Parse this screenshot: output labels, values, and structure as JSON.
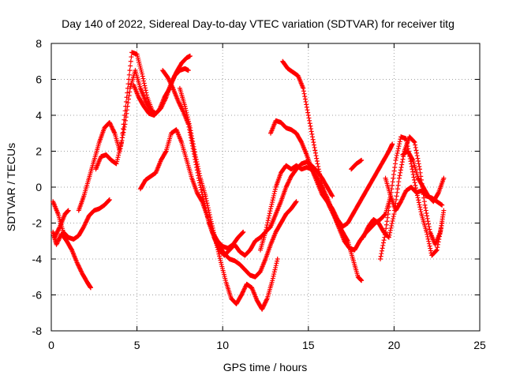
{
  "chart_data": {
    "type": "scatter",
    "title": "Day 140 of 2022, Sidereal Day-to-day VTEC variation (SDTVAR) for receiver titg",
    "xlabel": "GPS time / hours",
    "ylabel": "SDTVAR / TECUs",
    "xlim": [
      0,
      25
    ],
    "ylim": [
      -8,
      8
    ],
    "xticks": [
      "0",
      "5",
      "10",
      "15",
      "20",
      "25"
    ],
    "yticks": [
      "-8",
      "-6",
      "-4",
      "-2",
      "0",
      "2",
      "4",
      "6",
      "8"
    ],
    "grid": true,
    "marker": "+",
    "color": "#ff0000",
    "series": [
      {
        "name": "s1",
        "x": [
          0.1,
          0.3,
          0.6,
          0.9,
          1.2,
          1.5,
          1.8,
          2.1,
          2.3
        ],
        "y": [
          -2.5,
          -3.2,
          -2.6,
          -3.0,
          -3.5,
          -4.2,
          -4.8,
          -5.3,
          -5.6
        ]
      },
      {
        "name": "s2",
        "x": [
          0.1,
          0.4,
          0.7,
          1.0,
          1.3,
          1.6,
          1.9,
          2.2,
          2.5,
          2.8,
          3.1,
          3.4
        ],
        "y": [
          -0.8,
          -1.5,
          -2.5,
          -2.8,
          -2.9,
          -2.7,
          -2.2,
          -1.6,
          -1.3,
          -1.2,
          -1.0,
          -0.7
        ]
      },
      {
        "name": "s3",
        "x": [
          0.2,
          0.5,
          0.8,
          1.0
        ],
        "y": [
          -2.8,
          -2.2,
          -1.5,
          -1.3
        ]
      },
      {
        "name": "s4",
        "x": [
          1.6,
          1.9,
          2.2,
          2.5,
          2.8,
          3.1,
          3.4,
          3.7,
          4.0,
          4.3,
          4.6,
          4.9,
          5.2,
          5.5,
          5.8,
          6.1,
          6.4,
          6.7,
          7.0,
          7.3,
          7.6,
          7.9,
          8.1
        ],
        "y": [
          -1.3,
          -0.5,
          0.5,
          1.5,
          2.5,
          3.3,
          3.6,
          3.0,
          2.0,
          3.5,
          5.5,
          6.5,
          5.5,
          4.8,
          4.3,
          4.1,
          4.4,
          5.0,
          5.8,
          6.4,
          6.9,
          7.2,
          7.3
        ]
      },
      {
        "name": "s5",
        "x": [
          2.6,
          2.9,
          3.2,
          3.5,
          3.8,
          4.1,
          4.4,
          4.7,
          5.0,
          5.3,
          5.6,
          6.0
        ],
        "y": [
          1.0,
          1.7,
          1.8,
          1.5,
          1.3,
          2.5,
          5.0,
          7.5,
          7.4,
          6.3,
          5.0,
          4.0
        ]
      },
      {
        "name": "s6",
        "x": [
          4.8,
          5.1,
          5.4,
          5.7,
          6.0,
          6.3,
          6.6,
          6.9,
          7.2,
          7.5,
          7.8,
          8.0
        ],
        "y": [
          5.7,
          5.0,
          4.5,
          4.1,
          4.0,
          4.3,
          5.0,
          5.5,
          6.2,
          6.5,
          6.6,
          6.5
        ]
      },
      {
        "name": "s7",
        "x": [
          5.2,
          5.5,
          5.8,
          6.1,
          6.4,
          6.7,
          7.0,
          7.3,
          7.6,
          7.9,
          8.2,
          8.5,
          8.8,
          9.1,
          9.4,
          9.7,
          10.0,
          10.3,
          10.6,
          10.9,
          11.2
        ],
        "y": [
          -0.1,
          0.4,
          0.6,
          0.8,
          1.5,
          2.0,
          3.0,
          3.2,
          2.5,
          1.5,
          0.5,
          -0.3,
          -0.8,
          -1.6,
          -2.5,
          -3.0,
          -3.3,
          -3.4,
          -3.2,
          -2.8,
          -2.5
        ]
      },
      {
        "name": "s8",
        "x": [
          6.5,
          6.8,
          7.1,
          7.4,
          7.7,
          8.0,
          8.3,
          8.6,
          8.9,
          9.2,
          9.5,
          9.8,
          10.1,
          10.4,
          10.7,
          11.0,
          11.3,
          11.6,
          11.9,
          12.2,
          12.5,
          12.8,
          13.1,
          13.4,
          13.7,
          14.0,
          14.3
        ],
        "y": [
          6.5,
          6.1,
          5.5,
          4.8,
          4.2,
          3.5,
          2.0,
          0.5,
          -0.8,
          -2.0,
          -2.8,
          -3.3,
          -3.7,
          -4.0,
          -4.1,
          -4.3,
          -4.6,
          -4.9,
          -5.0,
          -4.7,
          -4.0,
          -3.2,
          -2.5,
          -2.0,
          -1.5,
          -1.2,
          -0.8
        ]
      },
      {
        "name": "s9",
        "x": [
          7.5,
          7.8,
          8.1,
          8.4,
          8.7,
          9.0,
          9.3,
          9.6,
          9.9,
          10.2,
          10.5,
          10.8,
          11.1,
          11.4,
          11.7,
          12.0,
          12.3,
          12.6,
          12.9,
          13.2
        ],
        "y": [
          5.5,
          4.5,
          3.3,
          1.8,
          0.5,
          -0.5,
          -1.8,
          -3.0,
          -4.2,
          -5.3,
          -6.2,
          -6.5,
          -6.0,
          -5.4,
          -5.6,
          -6.3,
          -6.8,
          -6.2,
          -5.2,
          -4.0
        ]
      },
      {
        "name": "s10",
        "x": [
          9.5,
          9.8,
          10.1,
          10.4,
          10.7,
          11.0,
          11.3,
          11.6,
          11.9,
          12.2,
          12.5,
          12.8,
          13.1,
          13.4,
          13.7,
          14.0,
          14.3,
          14.6,
          14.9,
          15.2,
          15.5,
          15.8,
          16.1,
          16.4
        ],
        "y": [
          -2.8,
          -3.5,
          -3.8,
          -3.5,
          -3.2,
          -3.6,
          -3.8,
          -3.5,
          -3.0,
          -2.8,
          -2.5,
          -2.2,
          -1.5,
          -0.8,
          0.0,
          0.6,
          1.0,
          1.3,
          1.4,
          1.2,
          0.9,
          0.5,
          0.0,
          -0.5
        ]
      },
      {
        "name": "s11",
        "x": [
          12.2,
          12.5,
          12.8,
          13.1,
          13.4,
          13.7,
          14.0,
          14.3,
          14.6,
          14.9,
          15.2,
          15.5,
          15.8,
          16.1,
          16.4,
          16.7,
          17.0,
          17.3,
          17.6,
          17.9,
          18.1
        ],
        "y": [
          -3.5,
          -2.5,
          -1.2,
          0.0,
          0.8,
          1.2,
          1.0,
          1.2,
          1.0,
          1.1,
          1.0,
          0.5,
          0.0,
          -0.6,
          -1.3,
          -2.0,
          -2.5,
          -3.0,
          -4.0,
          -5.0,
          -5.2
        ]
      },
      {
        "name": "s12",
        "x": [
          12.8,
          13.1,
          13.4,
          13.7,
          14.0,
          14.3,
          14.6,
          14.9,
          15.2,
          15.5,
          15.8,
          16.1,
          16.4,
          16.7,
          17.0,
          17.3,
          17.6,
          17.9,
          18.2,
          18.5,
          18.8,
          19.1,
          19.4,
          19.7,
          19.9
        ],
        "y": [
          3.0,
          3.7,
          3.6,
          3.3,
          3.2,
          3.0,
          2.5,
          1.8,
          1.0,
          0.3,
          -0.4,
          -0.8,
          -1.2,
          -1.8,
          -2.2,
          -2.0,
          -1.5,
          -1.0,
          -0.5,
          0.0,
          0.5,
          1.0,
          1.5,
          2.0,
          2.4
        ]
      },
      {
        "name": "s13",
        "x": [
          13.5,
          13.8,
          14.1,
          14.4,
          14.7,
          15.0,
          15.3,
          15.6,
          15.9,
          16.2,
          16.5,
          16.8,
          17.1,
          17.4,
          17.7,
          18.0,
          18.3,
          18.6,
          18.9,
          19.2,
          19.5,
          19.8
        ],
        "y": [
          7.0,
          6.6,
          6.4,
          6.2,
          5.5,
          4.0,
          2.5,
          1.0,
          -0.3,
          -1.0,
          -1.6,
          -2.3,
          -3.0,
          -3.4,
          -3.5,
          -3.0,
          -2.6,
          -2.3,
          -2.0,
          -1.8,
          -1.5,
          -0.5
        ]
      },
      {
        "name": "s14",
        "x": [
          17.5,
          17.8,
          18.1
        ],
        "y": [
          1.0,
          1.3,
          1.5
        ]
      },
      {
        "name": "s15",
        "x": [
          18.2,
          18.5,
          18.8,
          19.1,
          19.4,
          19.7,
          20.0,
          20.3,
          20.6,
          20.9,
          21.2,
          21.5,
          21.8,
          22.1,
          22.4,
          22.7,
          22.9
        ],
        "y": [
          -2.8,
          -2.2,
          -1.8,
          -2.0,
          -2.5,
          -2.8,
          -1.5,
          0.5,
          2.0,
          2.8,
          2.5,
          1.0,
          -1.0,
          -2.5,
          -3.2,
          -2.5,
          -1.3
        ]
      },
      {
        "name": "s16",
        "x": [
          19.2,
          19.5,
          19.8,
          20.1,
          20.4,
          20.7,
          21.0,
          21.3,
          21.6,
          21.9,
          22.2,
          22.5,
          22.8
        ],
        "y": [
          -4.0,
          -2.5,
          -0.5,
          1.5,
          2.8,
          2.7,
          1.3,
          -0.2,
          -1.5,
          -2.5,
          -3.8,
          -3.5,
          -2.0
        ]
      },
      {
        "name": "s17",
        "x": [
          19.5,
          19.8,
          20.1,
          20.4,
          20.7,
          21.0,
          21.3,
          21.6,
          21.9,
          22.2,
          22.5,
          22.8
        ],
        "y": [
          0.5,
          -0.5,
          -1.3,
          -0.8,
          -0.2,
          0.0,
          -0.3,
          -0.2,
          -0.5,
          -0.6,
          -0.8,
          -1.0
        ]
      },
      {
        "name": "s18",
        "x": [
          20.5,
          20.8,
          21.1,
          21.4,
          21.7,
          22.0,
          22.3,
          22.6,
          22.9
        ],
        "y": [
          1.8,
          2.0,
          1.5,
          0.5,
          0.0,
          -0.5,
          -0.8,
          -0.3,
          0.5
        ]
      }
    ]
  }
}
